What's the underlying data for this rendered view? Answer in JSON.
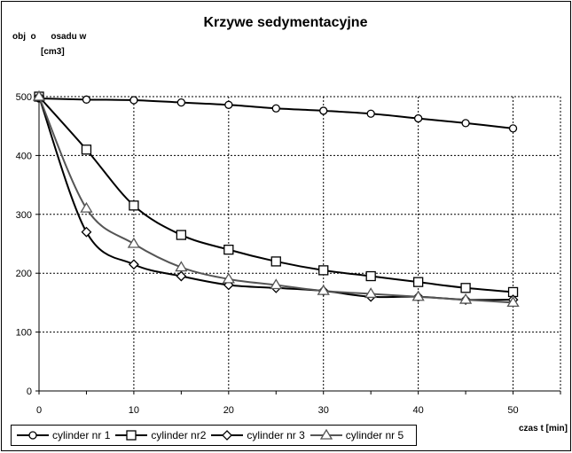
{
  "chart_data": {
    "type": "line",
    "title": "Krzywe sedymentacyjne",
    "ylabel_line1": "obj  o      osadu w",
    "ylabel_line2": "[cm3]",
    "xlabel": "czas t [min]",
    "xlim": [
      0,
      55
    ],
    "ylim": [
      0,
      500
    ],
    "xticks": [
      0,
      10,
      20,
      30,
      40,
      50
    ],
    "yticks": [
      0,
      100,
      200,
      300,
      400,
      500
    ],
    "grid": true,
    "legend_position": "bottom-left",
    "series": [
      {
        "name": "cylinder nr 1",
        "marker": "circle",
        "color": "#000000",
        "x": [
          0,
          5,
          10,
          15,
          20,
          25,
          30,
          35,
          40,
          45,
          50
        ],
        "y": [
          497,
          495,
          494,
          490,
          486,
          480,
          476,
          471,
          463,
          455,
          446
        ]
      },
      {
        "name": "cylinder nr2",
        "marker": "square",
        "color": "#000000",
        "x": [
          0,
          5,
          10,
          15,
          20,
          25,
          30,
          35,
          40,
          45,
          50
        ],
        "y": [
          500,
          410,
          315,
          265,
          240,
          220,
          205,
          195,
          185,
          175,
          168
        ]
      },
      {
        "name": "cylinder nr 3",
        "marker": "diamond",
        "color": "#000000",
        "x": [
          0,
          5,
          10,
          15,
          20,
          25,
          30,
          35,
          40,
          45,
          50
        ],
        "y": [
          500,
          270,
          215,
          195,
          180,
          175,
          170,
          160,
          160,
          155,
          155
        ]
      },
      {
        "name": "cylinder nr 5",
        "marker": "triangle",
        "color": "#555555",
        "x": [
          0,
          5,
          10,
          15,
          20,
          25,
          30,
          35,
          40,
          45,
          50
        ],
        "y": [
          500,
          310,
          250,
          210,
          190,
          180,
          170,
          165,
          160,
          155,
          150
        ]
      }
    ]
  }
}
